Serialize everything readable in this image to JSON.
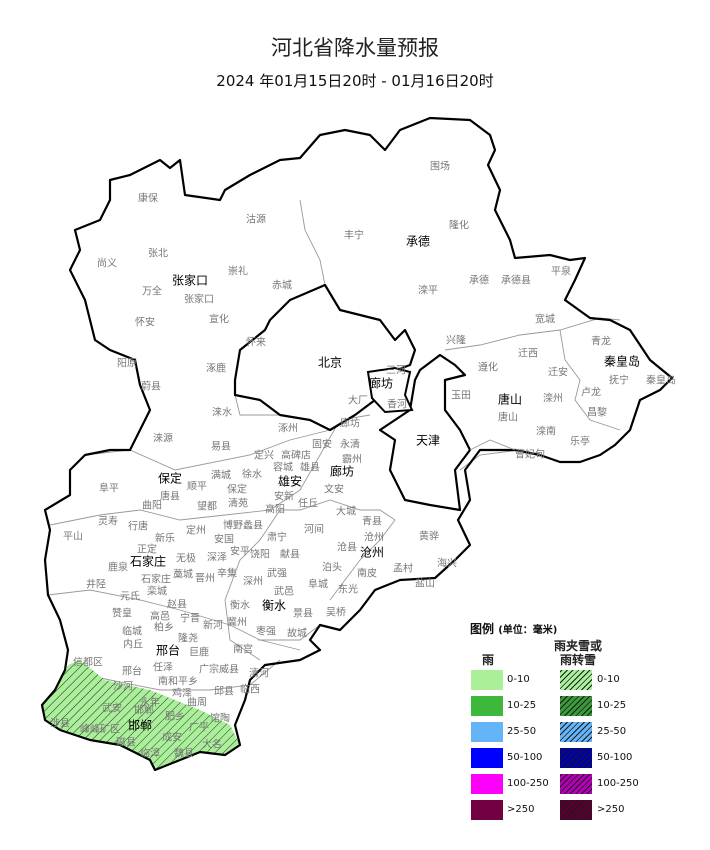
{
  "header": {
    "title": "河北省降水量预报",
    "subtitle": "2024 年01月15日20时 - 01月16日20时"
  },
  "map": {
    "precip_areas": [
      {
        "region": "邯郸",
        "category": "雨夹雪或雨转雪",
        "range": "0-10",
        "color": "#aaf09a"
      }
    ],
    "cities": [
      "张家口",
      "承德",
      "北京",
      "廊坊",
      "唐山",
      "秦皇岛",
      "天津",
      "保定",
      "雄安",
      "廊坊",
      "石家庄",
      "沧州",
      "衡水",
      "邢台",
      "邯郸"
    ],
    "counties": [
      "康保",
      "沽源",
      "尚义",
      "张北",
      "崇礼",
      "万全",
      "张家口",
      "赤城",
      "怀安",
      "宣化",
      "怀来",
      "阳原",
      "涿鹿",
      "蔚县",
      "围场",
      "丰宁",
      "隆化",
      "滦平",
      "承德",
      "承德县",
      "平泉",
      "宽城",
      "兴隆",
      "迁西",
      "遵化",
      "青龙",
      "迁安",
      "抚宁",
      "秦皇岛",
      "卢龙",
      "玉田",
      "唐山",
      "滦州",
      "昌黎",
      "滦南",
      "乐亭",
      "曹妃甸",
      "三河",
      "大厂",
      "香河",
      "涞水",
      "涞源",
      "易县",
      "涿州",
      "定兴",
      "高碑店",
      "固安",
      "永清",
      "霸州",
      "满城",
      "徐水",
      "容城",
      "雄县",
      "廊坊",
      "阜平",
      "唐县",
      "顺平",
      "保定",
      "文安",
      "安新",
      "曲阳",
      "望都",
      "清苑",
      "高阳",
      "任丘",
      "大城",
      "灵寿",
      "行唐",
      "定州",
      "博野蠡县",
      "河间",
      "平山",
      "新乐",
      "安国",
      "肃宁",
      "正定",
      "无极",
      "深泽",
      "安平",
      "饶阳",
      "献县",
      "沧县",
      "沧州",
      "青县",
      "黄骅",
      "鹿泉",
      "石家庄",
      "藁城",
      "晋州",
      "辛集",
      "深州",
      "武强",
      "泊头",
      "南皮",
      "孟村",
      "海兴",
      "盐山",
      "井陉",
      "栾城",
      "元氏",
      "赵县",
      "武邑",
      "阜城",
      "东光",
      "衡水",
      "景县",
      "吴桥",
      "赞皇",
      "高邑",
      "宁晋",
      "冀州",
      "枣强",
      "故城",
      "柏乡",
      "新河",
      "临城",
      "隆尧",
      "巨鹿",
      "南宫",
      "内丘",
      "信都区",
      "邢台",
      "任泽",
      "广宗威县",
      "清河",
      "南和平乡",
      "沙河",
      "鸡泽",
      "永年",
      "曲周",
      "邱县",
      "临西",
      "馆陶",
      "肥乡",
      "广平",
      "武安",
      "邯郸",
      "涉县",
      "峰峰矿区",
      "磁县",
      "成安",
      "临漳",
      "魏县",
      "大名"
    ]
  },
  "legend": {
    "title": "图例",
    "unit": "(单位：毫米)",
    "rain_header": "雨",
    "sleet_header_line1": "雨夹雪或",
    "sleet_header_line2": "雨转雪",
    "rain": [
      {
        "label": "0-10",
        "color": "#aaf09a"
      },
      {
        "label": "10-25",
        "color": "#3cb83c"
      },
      {
        "label": "25-50",
        "color": "#64b4f8"
      },
      {
        "label": "50-100",
        "color": "#0000fe"
      },
      {
        "label": "100-250",
        "color": "#fc00fc"
      },
      {
        "label": ">250",
        "color": "#720042"
      }
    ],
    "sleet": [
      {
        "label": "0-10",
        "color": "#aaf09a"
      },
      {
        "label": "10-25",
        "color": "#3a9a3a"
      },
      {
        "label": "25-50",
        "color": "#64b4f8"
      },
      {
        "label": "50-100",
        "color": "#0000a8"
      },
      {
        "label": "100-250",
        "color": "#b400b4"
      },
      {
        "label": ">250",
        "color": "#560030"
      }
    ]
  }
}
